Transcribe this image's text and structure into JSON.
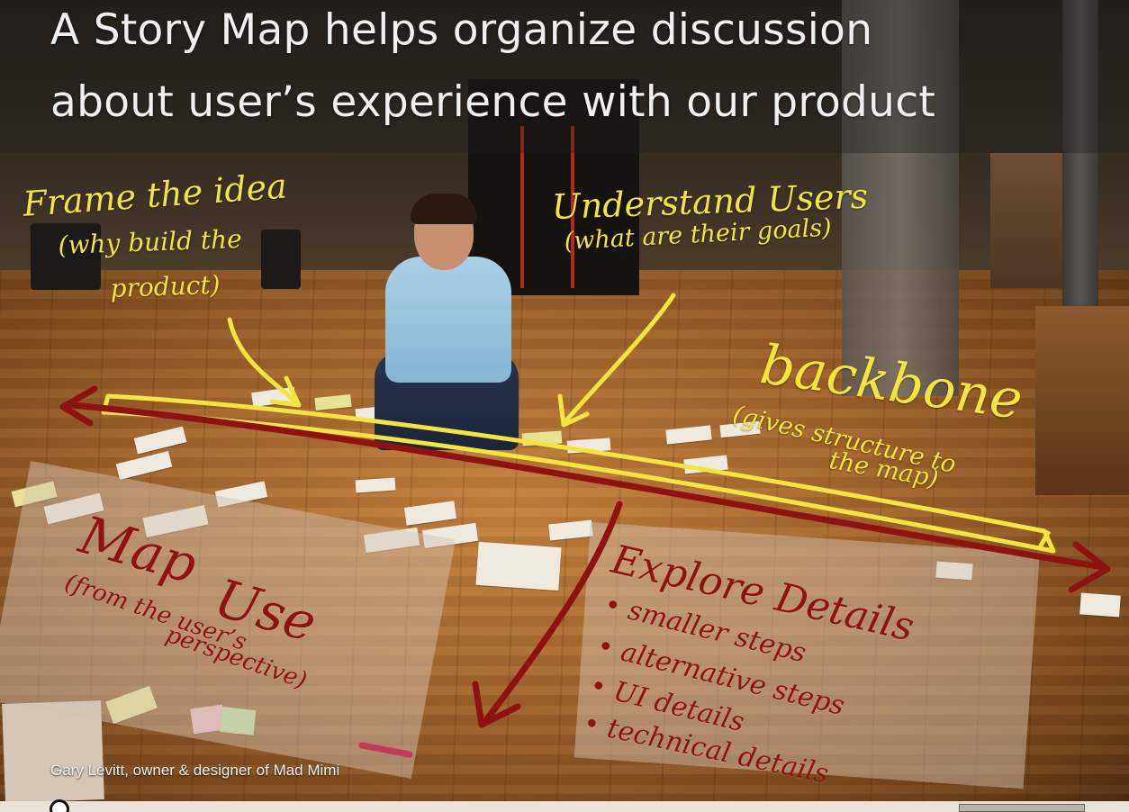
{
  "slide": {
    "title_line1": "A Story Map helps organize discussion",
    "title_line2": "about user’s experience with our product"
  },
  "annotations": {
    "frame_idea": {
      "heading": "Frame the idea",
      "sub1": "(why build the",
      "sub2": "product)"
    },
    "understand_users": {
      "heading": "Understand Users",
      "sub": "(what are their goals)"
    },
    "backbone": {
      "heading": "backbone",
      "sub1": "(gives structure to",
      "sub2": "the map)"
    },
    "map_use": {
      "heading1": "Map",
      "heading2": "Use",
      "sub1": "(from the user’s",
      "sub2": "perspective)"
    },
    "explore_details": {
      "heading": "Explore Details",
      "bullets": [
        "smaller steps",
        "alternative steps",
        "UI details",
        "technical details"
      ]
    }
  },
  "credit": "Gary Levitt, owner & designer of Mad Mimi",
  "colors": {
    "yellow_ink": "#f2e540",
    "red_ink": "#8e1212",
    "title_text": "#f0f0f0"
  },
  "icons": {
    "license": "creative-commons-icon"
  }
}
